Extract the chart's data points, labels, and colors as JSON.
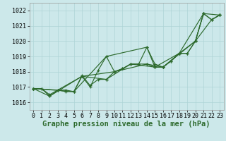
{
  "background_color": "#cce8ea",
  "grid_color": "#aed4d6",
  "line_color": "#2d6a2d",
  "marker_color": "#2d6a2d",
  "xlabel": "Graphe pression niveau de la mer (hPa)",
  "xlabel_fontsize": 7.5,
  "tick_fontsize": 6,
  "xlim": [
    -0.5,
    23.5
  ],
  "ylim": [
    1015.5,
    1022.5
  ],
  "yticks": [
    1016,
    1017,
    1018,
    1019,
    1020,
    1021,
    1022
  ],
  "xticks": [
    0,
    1,
    2,
    3,
    4,
    5,
    6,
    7,
    8,
    9,
    10,
    11,
    12,
    13,
    14,
    15,
    16,
    17,
    18,
    19,
    20,
    21,
    22,
    23
  ],
  "series1": [
    [
      0,
      1016.9
    ],
    [
      1,
      1016.9
    ],
    [
      2,
      1016.4
    ],
    [
      3,
      1016.8
    ],
    [
      4,
      1016.7
    ],
    [
      5,
      1016.7
    ],
    [
      6,
      1017.7
    ],
    [
      7,
      1017.0
    ],
    [
      8,
      1018.1
    ],
    [
      9,
      1019.0
    ],
    [
      10,
      1018.0
    ],
    [
      11,
      1018.2
    ],
    [
      12,
      1018.5
    ],
    [
      13,
      1018.5
    ],
    [
      14,
      1019.6
    ],
    [
      15,
      1018.5
    ],
    [
      16,
      1018.3
    ],
    [
      17,
      1018.7
    ],
    [
      18,
      1019.2
    ],
    [
      19,
      1019.2
    ],
    [
      20,
      1020.0
    ],
    [
      21,
      1021.8
    ],
    [
      22,
      1021.4
    ],
    [
      23,
      1021.7
    ]
  ],
  "series2": [
    [
      0,
      1016.9
    ],
    [
      1,
      1016.9
    ],
    [
      2,
      1016.5
    ],
    [
      3,
      1016.8
    ],
    [
      4,
      1016.8
    ],
    [
      5,
      1016.7
    ],
    [
      6,
      1017.75
    ],
    [
      7,
      1017.1
    ],
    [
      8,
      1017.5
    ],
    [
      9,
      1017.5
    ],
    [
      10,
      1018.0
    ],
    [
      11,
      1018.2
    ],
    [
      12,
      1018.5
    ],
    [
      13,
      1018.5
    ],
    [
      14,
      1018.5
    ],
    [
      15,
      1018.3
    ],
    [
      16,
      1018.3
    ],
    [
      17,
      1018.7
    ],
    [
      18,
      1019.2
    ],
    [
      19,
      1019.2
    ],
    [
      20,
      1020.0
    ],
    [
      21,
      1021.8
    ],
    [
      22,
      1021.4
    ],
    [
      23,
      1021.7
    ]
  ],
  "series3": [
    [
      0,
      1016.9
    ],
    [
      5,
      1016.7
    ],
    [
      9,
      1019.0
    ],
    [
      14,
      1019.6
    ],
    [
      15,
      1018.3
    ],
    [
      16,
      1018.3
    ],
    [
      20,
      1020.0
    ],
    [
      21,
      1021.8
    ]
  ],
  "series4": [
    [
      0,
      1016.9
    ],
    [
      2,
      1016.4
    ],
    [
      6,
      1017.7
    ],
    [
      10,
      1018.0
    ],
    [
      14,
      1018.5
    ],
    [
      16,
      1018.3
    ],
    [
      18,
      1019.2
    ],
    [
      20,
      1020.0
    ],
    [
      22,
      1021.4
    ],
    [
      23,
      1021.7
    ]
  ],
  "series5": [
    [
      0,
      1016.9
    ],
    [
      3,
      1016.8
    ],
    [
      6,
      1017.7
    ],
    [
      9,
      1017.5
    ],
    [
      12,
      1018.5
    ],
    [
      15,
      1018.3
    ],
    [
      18,
      1019.2
    ],
    [
      21,
      1021.8
    ],
    [
      23,
      1021.7
    ]
  ]
}
